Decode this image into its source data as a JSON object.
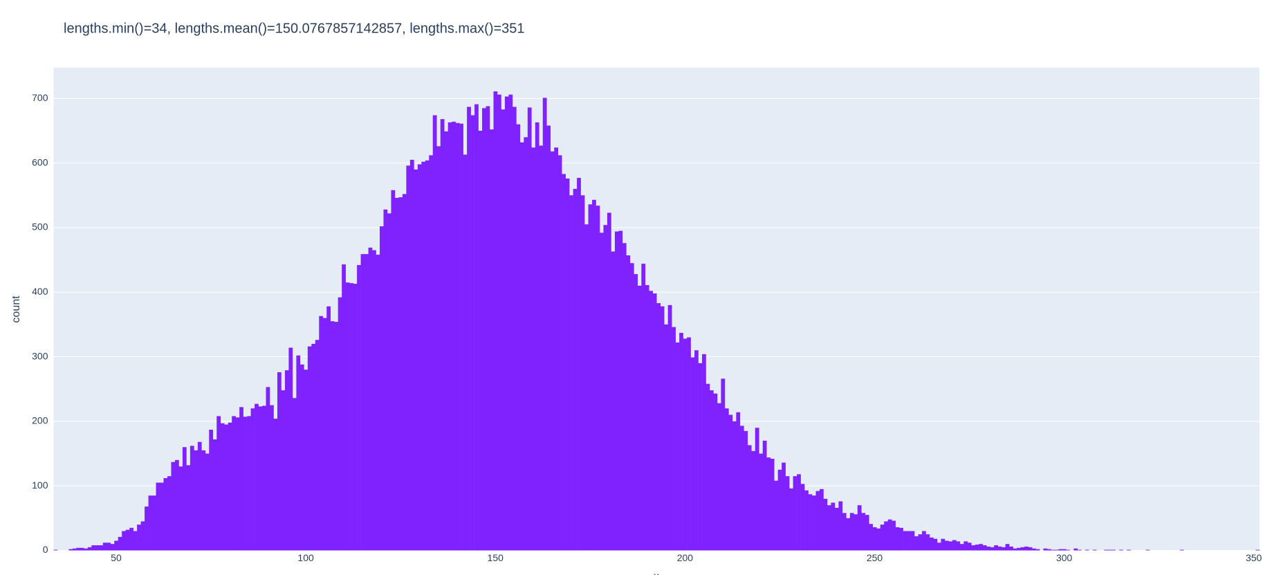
{
  "chart_data": {
    "type": "histogram",
    "title": "lengths.min()=34, lengths.mean()=150.0767857142857, lengths.max()=351",
    "xlabel": "x",
    "ylabel": "count",
    "color": "#7f22fe",
    "grid": true,
    "xlim": [
      33.5,
      351.5
    ],
    "ylim": [
      0,
      748
    ],
    "xticks": [
      50,
      100,
      150,
      200,
      250,
      300,
      350
    ],
    "yticks": [
      0,
      100,
      200,
      300,
      400,
      500,
      600,
      700
    ],
    "bins": [
      33.5,
      34.5,
      35.5,
      36.5,
      37.5,
      38.5,
      39.5,
      40.5,
      41.5,
      42.5,
      43.5,
      44.5,
      45.5,
      46.5,
      47.5,
      48.5,
      49.5,
      50.5,
      51.5,
      52.5,
      53.5,
      54.5,
      55.5,
      56.5,
      57.5,
      58.5,
      59.5,
      60.5,
      61.5,
      62.5,
      63.5,
      64.5,
      65.5,
      66.5,
      67.5,
      68.5,
      69.5,
      70.5,
      71.5,
      72.5,
      73.5,
      74.5,
      75.5,
      76.5,
      77.5,
      78.5,
      79.5,
      80.5,
      81.5,
      82.5,
      83.5,
      84.5,
      85.5,
      86.5,
      87.5,
      88.5,
      89.5,
      90.5,
      91.5,
      92.5,
      93.5,
      94.5,
      95.5,
      96.5,
      97.5,
      98.5,
      99.5,
      100.5,
      101.5,
      102.5,
      103.5,
      104.5,
      105.5,
      106.5,
      107.5,
      108.5,
      109.5,
      110.5,
      111.5,
      112.5,
      113.5,
      114.5,
      115.5,
      116.5,
      117.5,
      118.5,
      119.5,
      120.5,
      121.5,
      122.5,
      123.5,
      124.5,
      125.5,
      126.5,
      127.5,
      128.5,
      129.5,
      130.5,
      131.5,
      132.5,
      133.5,
      134.5,
      135.5,
      136.5,
      137.5,
      138.5,
      139.5,
      140.5,
      141.5,
      142.5,
      143.5,
      144.5,
      145.5,
      146.5,
      147.5,
      148.5,
      149.5,
      150.5,
      151.5,
      152.5,
      153.5,
      154.5,
      155.5,
      156.5,
      157.5,
      158.5,
      159.5,
      160.5,
      161.5,
      162.5,
      163.5,
      164.5,
      165.5,
      166.5,
      167.5,
      168.5,
      169.5,
      170.5,
      171.5,
      172.5,
      173.5,
      174.5,
      175.5,
      176.5,
      177.5,
      178.5,
      179.5,
      180.5,
      181.5,
      182.5,
      183.5,
      184.5,
      185.5,
      186.5,
      187.5,
      188.5,
      189.5,
      190.5,
      191.5,
      192.5,
      193.5,
      194.5,
      195.5,
      196.5,
      197.5,
      198.5,
      199.5,
      200.5,
      201.5,
      202.5,
      203.5,
      204.5,
      205.5,
      206.5,
      207.5,
      208.5,
      209.5,
      210.5,
      211.5,
      212.5,
      213.5,
      214.5,
      215.5,
      216.5,
      217.5,
      218.5,
      219.5,
      220.5,
      221.5,
      222.5,
      223.5,
      224.5,
      225.5,
      226.5,
      227.5,
      228.5,
      229.5,
      230.5,
      231.5,
      232.5,
      233.5,
      234.5,
      235.5,
      236.5,
      237.5,
      238.5,
      239.5,
      240.5,
      241.5,
      242.5,
      243.5,
      244.5,
      245.5,
      246.5,
      247.5,
      248.5,
      249.5,
      250.5,
      251.5,
      252.5,
      253.5,
      254.5,
      255.5,
      256.5,
      257.5,
      258.5,
      259.5,
      260.5,
      261.5,
      262.5,
      263.5,
      264.5,
      265.5,
      266.5,
      267.5,
      268.5,
      269.5,
      270.5,
      271.5,
      272.5,
      273.5,
      274.5,
      275.5,
      276.5,
      277.5,
      278.5,
      279.5,
      280.5,
      281.5,
      282.5,
      283.5,
      284.5,
      285.5,
      286.5,
      287.5,
      288.5,
      289.5,
      290.5,
      291.5,
      292.5,
      293.5,
      294.5,
      295.5,
      296.5,
      297.5,
      298.5,
      299.5,
      300.5,
      301.5,
      302.5,
      303.5,
      304.5,
      305.5,
      306.5,
      307.5,
      308.5,
      309.5,
      310.5,
      311.5,
      312.5,
      313.5,
      314.5,
      315.5,
      316.5,
      317.5,
      318.5,
      319.5,
      320.5,
      321.5,
      322.5,
      323.5,
      324.5,
      325.5,
      326.5,
      327.5,
      328.5,
      329.5,
      330.5,
      331.5,
      332.5,
      333.5,
      334.5,
      335.5,
      336.5,
      337.5,
      338.5,
      339.5,
      340.5,
      341.5,
      342.5,
      343.5,
      344.5,
      345.5,
      346.5,
      347.5,
      348.5,
      349.5,
      350.5,
      351.5
    ],
    "values": [
      1,
      0,
      0,
      0,
      2,
      3,
      4,
      4,
      3,
      5,
      8,
      8,
      8,
      12,
      12,
      10,
      15,
      21,
      30,
      32,
      35,
      30,
      40,
      45,
      68,
      85,
      85,
      105,
      105,
      112,
      115,
      137,
      140,
      130,
      160,
      132,
      162,
      155,
      168,
      155,
      150,
      187,
      172,
      208,
      197,
      195,
      198,
      208,
      206,
      222,
      207,
      208,
      220,
      227,
      223,
      224,
      253,
      225,
      204,
      276,
      248,
      279,
      314,
      236,
      302,
      288,
      280,
      316,
      320,
      326,
      363,
      360,
      378,
      355,
      354,
      392,
      443,
      415,
      414,
      413,
      442,
      459,
      459,
      469,
      465,
      458,
      502,
      528,
      522,
      558,
      546,
      547,
      552,
      596,
      605,
      590,
      598,
      602,
      604,
      612,
      674,
      626,
      668,
      649,
      663,
      664,
      662,
      661,
      613,
      687,
      674,
      691,
      650,
      685,
      688,
      652,
      711,
      706,
      683,
      703,
      706,
      687,
      660,
      632,
      640,
      686,
      624,
      663,
      627,
      701,
      658,
      618,
      624,
      612,
      583,
      576,
      550,
      560,
      577,
      550,
      505,
      536,
      543,
      534,
      492,
      504,
      523,
      463,
      494,
      495,
      476,
      457,
      445,
      428,
      410,
      444,
      411,
      402,
      398,
      383,
      378,
      350,
      380,
      346,
      322,
      337,
      328,
      330,
      299,
      310,
      290,
      304,
      258,
      248,
      243,
      228,
      266,
      220,
      210,
      200,
      214,
      193,
      185,
      163,
      154,
      190,
      150,
      170,
      144,
      142,
      108,
      125,
      136,
      115,
      96,
      115,
      118,
      103,
      93,
      87,
      85,
      92,
      95,
      80,
      70,
      74,
      66,
      76,
      58,
      50,
      58,
      56,
      70,
      58,
      55,
      41,
      36,
      34,
      40,
      45,
      48,
      46,
      36,
      35,
      30,
      30,
      30,
      22,
      25,
      30,
      25,
      20,
      18,
      12,
      18,
      15,
      14,
      16,
      14,
      10,
      14,
      12,
      8,
      9,
      10,
      8,
      6,
      5,
      8,
      6,
      5,
      10,
      6,
      3,
      4,
      5,
      6,
      5,
      3,
      2,
      0,
      3,
      2,
      1,
      1,
      2,
      2,
      1,
      0,
      3,
      1,
      0,
      1,
      0,
      1,
      0,
      0,
      1,
      1,
      1,
      0,
      1,
      0,
      1,
      0,
      0,
      0,
      0,
      1,
      0,
      0,
      0,
      0,
      0,
      0,
      0,
      0,
      1,
      0,
      0,
      0,
      0,
      0,
      0,
      0,
      0,
      0,
      0,
      0,
      0,
      0,
      0,
      0,
      0,
      0,
      0,
      0,
      1
    ]
  }
}
